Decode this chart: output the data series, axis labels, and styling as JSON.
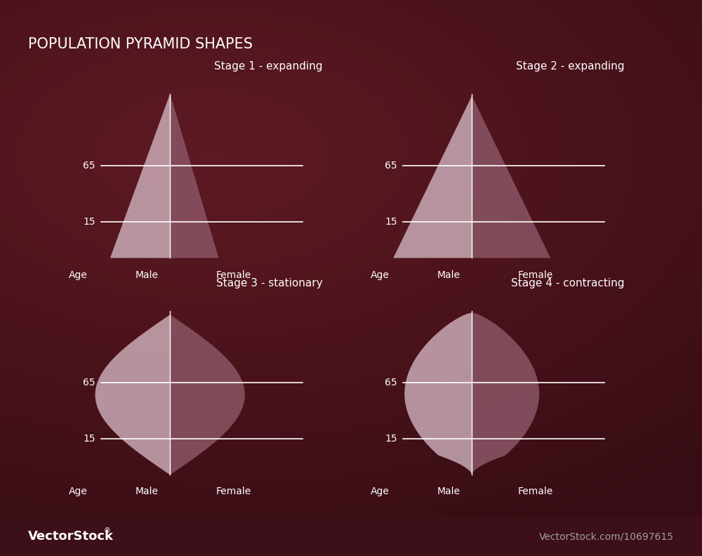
{
  "title": "POPULATION PYRAMID SHAPES",
  "bg_color": "#3d0f18",
  "male_color": "#c9aab5",
  "female_color": "#8b5565",
  "line_color": "#ffffff",
  "text_color": "#ffffff",
  "footer_bg": "#1a1e2a",
  "footer_text_right": "VectorStock.com/10697615",
  "stages": [
    {
      "title": "Stage 1 - expanding",
      "type": "stage1"
    },
    {
      "title": "Stage 2 - expanding",
      "type": "stage2"
    },
    {
      "title": "Stage 3 - stationary",
      "type": "stage3"
    },
    {
      "title": "Stage 4 - contracting",
      "type": "stage4"
    }
  ]
}
